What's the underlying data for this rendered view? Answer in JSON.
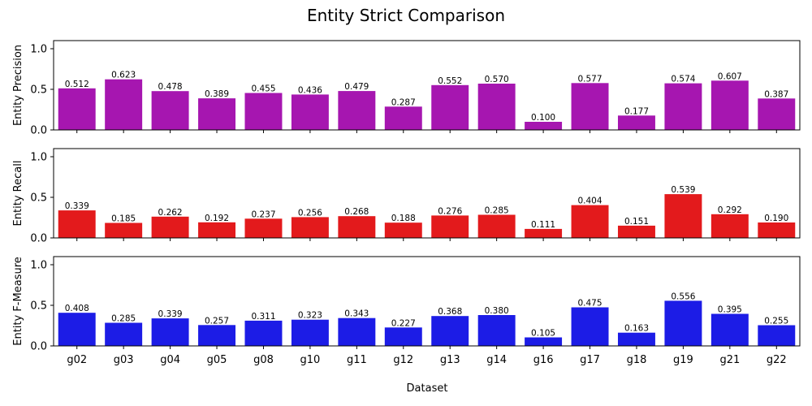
{
  "chart_data": {
    "type": "bar",
    "title": "Entity Strict Comparison",
    "xlabel": "Dataset",
    "categories": [
      "g02",
      "g03",
      "g04",
      "g05",
      "g08",
      "g10",
      "g11",
      "g12",
      "g13",
      "g14",
      "g16",
      "g17",
      "g18",
      "g19",
      "g21",
      "g22"
    ],
    "ylim": [
      0,
      1.1
    ],
    "yticks": [
      "0.0",
      "0.5",
      "1.0"
    ],
    "panels": [
      {
        "ylabel": "Entity Precision",
        "color": "#a616b0",
        "values": [
          0.512,
          0.623,
          0.478,
          0.389,
          0.455,
          0.436,
          0.479,
          0.287,
          0.552,
          0.57,
          0.1,
          0.577,
          0.177,
          0.574,
          0.607,
          0.387
        ],
        "labels": [
          "0.512",
          "0.623",
          "0.478",
          "0.389",
          "0.455",
          "0.436",
          "0.479",
          "0.287",
          "0.552",
          "0.570",
          "0.100",
          "0.577",
          "0.177",
          "0.574",
          "0.607",
          "0.387"
        ]
      },
      {
        "ylabel": "Entity Recall",
        "color": "#e31a1c",
        "values": [
          0.339,
          0.185,
          0.262,
          0.192,
          0.237,
          0.256,
          0.268,
          0.188,
          0.276,
          0.285,
          0.111,
          0.404,
          0.151,
          0.539,
          0.292,
          0.19
        ],
        "labels": [
          "0.339",
          "0.185",
          "0.262",
          "0.192",
          "0.237",
          "0.256",
          "0.268",
          "0.188",
          "0.276",
          "0.285",
          "0.111",
          "0.404",
          "0.151",
          "0.539",
          "0.292",
          "0.190"
        ]
      },
      {
        "ylabel": "Entity F-Measure",
        "color": "#1c1ce6",
        "values": [
          0.408,
          0.285,
          0.339,
          0.257,
          0.311,
          0.323,
          0.343,
          0.227,
          0.368,
          0.38,
          0.105,
          0.475,
          0.163,
          0.556,
          0.395,
          0.255
        ],
        "labels": [
          "0.408",
          "0.285",
          "0.339",
          "0.257",
          "0.311",
          "0.323",
          "0.343",
          "0.227",
          "0.368",
          "0.380",
          "0.105",
          "0.475",
          "0.163",
          "0.556",
          "0.395",
          "0.255"
        ]
      }
    ]
  }
}
